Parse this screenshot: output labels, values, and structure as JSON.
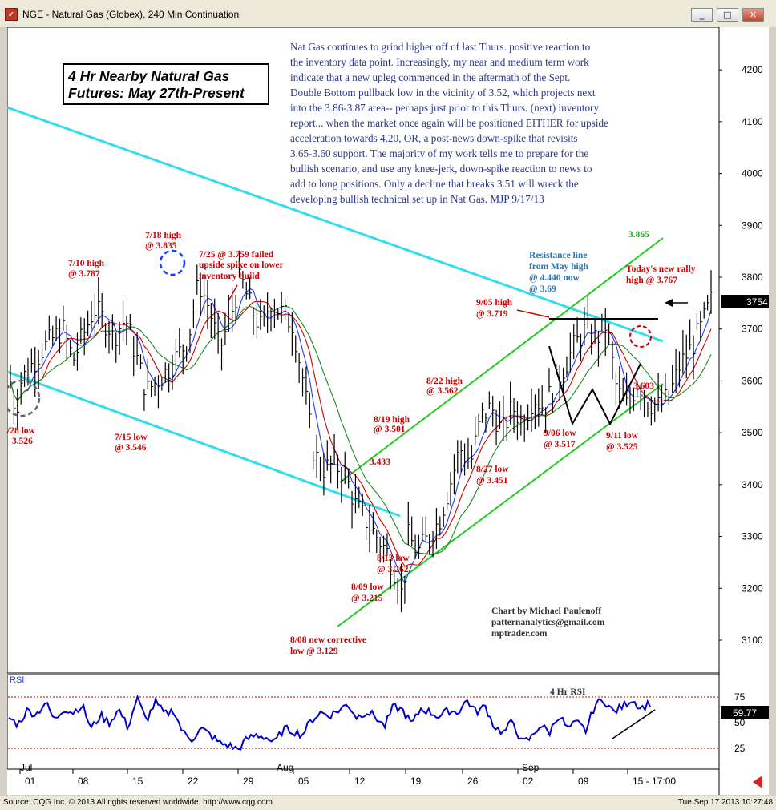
{
  "window": {
    "title": "NGE - Natural Gas (Globex), 240 Min Continuation",
    "min_icon": "minimize-icon",
    "max_icon": "maximize-icon",
    "close_icon": "close-icon"
  },
  "footer": {
    "source": "Source: CQG Inc. © 2013 All rights reserved worldwide. http://www.cqg.com",
    "timestamp": "Tue Sep 17 2013 10:27:48"
  },
  "chart_title": [
    "4 Hr Nearby Natural Gas",
    "Futures: May 27th-Present"
  ],
  "commentary": [
    "Nat Gas continues to grind higher off of last Thurs. positive reaction to",
    "the inventory data point. Increasingly, my near and medium term work",
    "indicate that a new upleg commenced in the aftermath of the Sept.",
    "Double Bottom pullback low in the vicinity of 3.52, which projects next",
    "into the 3.86-3.87 area-- perhaps just prior to this Thurs. (next) inventory",
    "report... when the market once again will be positioned EITHER for upside",
    "acceleration towards 4.20, OR, a post-news down-spike that revisits",
    "3.65-3.60 support.  The majority of my work tells me to prepare for the",
    "bullish scenario, and use any knee-jerk, down-spike reaction to news to",
    "add to long positions.  Only a decline that breaks 3.51 will wreck the",
    "developing bullish technical set up in Nat Gas.  MJP 9/17/13"
  ],
  "credit": [
    "Chart by Michael Paulenoff",
    "patternanalytics@gmail.com",
    "mptrader.com"
  ],
  "annotations": {
    "h_0710": [
      "7/10 high",
      "@ 3.787"
    ],
    "h_0718": [
      "7/18 high",
      "@ 3.835"
    ],
    "f_0725": [
      "7/25 @ 3.759 failed",
      "upside spike on lower",
      "inventory build"
    ],
    "l_0628": [
      "/28 low",
      "3.526"
    ],
    "l_0715": [
      "7/15 low",
      "@ 3.546"
    ],
    "l_0808": [
      "8/08 new corrective",
      "low @ 3.129"
    ],
    "l_0809": [
      "8/09 low",
      "@ 3.215"
    ],
    "l_0813": [
      "8/13 low",
      "@ 3.262"
    ],
    "v_3433": "3.433",
    "h_0819": [
      "8/19 high",
      "@ 3.501"
    ],
    "h_0822": [
      "8/22 high",
      "@ 3.562"
    ],
    "l_0827": [
      "8/27 low",
      "@ 3.451"
    ],
    "h_0905": [
      "9/05 high",
      "@ 3.719"
    ],
    "l_0906": [
      "9/06 low",
      "@ 3.517"
    ],
    "l_0911": [
      "9/11 low",
      "@ 3.525"
    ],
    "v_3603": "3.603",
    "today": [
      "Today's new rally",
      "high @ 3.767"
    ],
    "resistance": [
      "Resistance line",
      "from May high",
      "@ 4.440 now",
      "@ 3.69"
    ],
    "v_3865": "3.865",
    "rsi_label": "4 Hr RSI"
  },
  "last_price_label": "3754",
  "rsi_panel": {
    "name": "RSI",
    "last_label": "59.77",
    "levels": [
      "75",
      "50",
      "25"
    ]
  },
  "colors": {
    "price_bars": "#000000",
    "ma_blue": "#1e3cff",
    "ma_red": "#cc0000",
    "ma_green": "#1a8a1a",
    "downtrend_line": "#33ddee",
    "channel": "#22cc22",
    "annotation_red": "#d00000",
    "annotation_blue": "#2878b8",
    "rsi_line": "#0000cc"
  },
  "chart_data": {
    "type": "candlestick-bar",
    "interval": "240 Min",
    "y_axis": {
      "min": 3.05,
      "max": 4.25,
      "ticks": [
        4200,
        4100,
        4000,
        3900,
        3800,
        3700,
        3600,
        3500,
        3400,
        3300,
        3200,
        3100
      ]
    },
    "x_axis": {
      "ticks": [
        "01",
        "08",
        "15",
        "22",
        "29",
        "05",
        "12",
        "19",
        "26",
        "02",
        "09",
        "15 - 17:00"
      ],
      "month_labels": [
        "Jul",
        "Aug",
        "Sep"
      ]
    },
    "key_points": [
      {
        "date": "6/28",
        "price": 3.526,
        "kind": "low"
      },
      {
        "date": "7/10",
        "price": 3.787,
        "kind": "high"
      },
      {
        "date": "7/15",
        "price": 3.546,
        "kind": "low"
      },
      {
        "date": "7/18",
        "price": 3.835,
        "kind": "high"
      },
      {
        "date": "7/25",
        "price": 3.759,
        "kind": "failed spike"
      },
      {
        "date": "8/08",
        "price": 3.129,
        "kind": "low"
      },
      {
        "date": "8/09",
        "price": 3.215,
        "kind": "low"
      },
      {
        "date": "8/13",
        "price": 3.262,
        "kind": "low"
      },
      {
        "date": "8/19",
        "price": 3.501,
        "kind": "high"
      },
      {
        "date": "8/22",
        "price": 3.562,
        "kind": "high"
      },
      {
        "date": "8/27",
        "price": 3.451,
        "kind": "low"
      },
      {
        "date": "9/05",
        "price": 3.719,
        "kind": "high"
      },
      {
        "date": "9/06",
        "price": 3.517,
        "kind": "low"
      },
      {
        "date": "9/11",
        "price": 3.525,
        "kind": "low"
      },
      {
        "date": "9/17",
        "price": 3.767,
        "kind": "high"
      }
    ],
    "path": [
      [
        0,
        3.6
      ],
      [
        0.5,
        3.54
      ],
      [
        1,
        3.6
      ],
      [
        3,
        3.66
      ],
      [
        5,
        3.7
      ],
      [
        6,
        3.64
      ],
      [
        8,
        3.74
      ],
      [
        10,
        3.69
      ],
      [
        11,
        3.72
      ],
      [
        12,
        3.65
      ],
      [
        13,
        3.58
      ],
      [
        15,
        3.62
      ],
      [
        17,
        3.68
      ],
      [
        18,
        3.79
      ],
      [
        19,
        3.74
      ],
      [
        20,
        3.66
      ],
      [
        21,
        3.72
      ],
      [
        22,
        3.8
      ],
      [
        23,
        3.74
      ],
      [
        24,
        3.7
      ],
      [
        25,
        3.75
      ],
      [
        26,
        3.73
      ],
      [
        27,
        3.71
      ],
      [
        28,
        3.6
      ],
      [
        29,
        3.46
      ],
      [
        30,
        3.43
      ],
      [
        31,
        3.44
      ],
      [
        32,
        3.42
      ],
      [
        33,
        3.36
      ],
      [
        34,
        3.33
      ],
      [
        35,
        3.3
      ],
      [
        36,
        3.27
      ],
      [
        37,
        3.22
      ],
      [
        37.5,
        3.18
      ],
      [
        38,
        3.3
      ],
      [
        39,
        3.27
      ],
      [
        40,
        3.3
      ],
      [
        41,
        3.33
      ],
      [
        42,
        3.4
      ],
      [
        43,
        3.47
      ],
      [
        44,
        3.44
      ],
      [
        45,
        3.53
      ],
      [
        46,
        3.55
      ],
      [
        47,
        3.5
      ],
      [
        48,
        3.55
      ],
      [
        49,
        3.52
      ],
      [
        50,
        3.57
      ],
      [
        51,
        3.55
      ],
      [
        52,
        3.59
      ],
      [
        53,
        3.63
      ],
      [
        54,
        3.67
      ],
      [
        55,
        3.7
      ],
      [
        56,
        3.68
      ],
      [
        57,
        3.71
      ],
      [
        58,
        3.58
      ],
      [
        59,
        3.55
      ],
      [
        60,
        3.6
      ],
      [
        61,
        3.56
      ],
      [
        62,
        3.55
      ],
      [
        63,
        3.57
      ],
      [
        64,
        3.63
      ],
      [
        65,
        3.66
      ],
      [
        66,
        3.7
      ],
      [
        67,
        3.754
      ]
    ],
    "moving_averages": [
      "blue",
      "red",
      "green"
    ],
    "trendlines": [
      {
        "name": "downtrend from May high",
        "color": "cyan"
      },
      {
        "name": "lower downtrend channel",
        "color": "cyan"
      },
      {
        "name": "rising channel top",
        "color": "green",
        "label": "3.865"
      },
      {
        "name": "rising channel bottom",
        "color": "green",
        "label": "3.603"
      }
    ],
    "rsi": {
      "name": "4 Hr RSI",
      "levels": [
        75,
        50,
        25
      ],
      "last": 59.77,
      "values": [
        55,
        48,
        62,
        58,
        70,
        52,
        64,
        60,
        67,
        44,
        57,
        50,
        63,
        45,
        74,
        52,
        70,
        58,
        62,
        40,
        34,
        44,
        38,
        30,
        28,
        24,
        34,
        38,
        36,
        30,
        44,
        42,
        38,
        52,
        60,
        57,
        62,
        68,
        55,
        61,
        56,
        46,
        66,
        62,
        48,
        64,
        60,
        56,
        62,
        60,
        72,
        60,
        66,
        46,
        40,
        52,
        30,
        35,
        48,
        40,
        58,
        44,
        50,
        42,
        68,
        72,
        60,
        66,
        73,
        64,
        69
      ]
    }
  }
}
